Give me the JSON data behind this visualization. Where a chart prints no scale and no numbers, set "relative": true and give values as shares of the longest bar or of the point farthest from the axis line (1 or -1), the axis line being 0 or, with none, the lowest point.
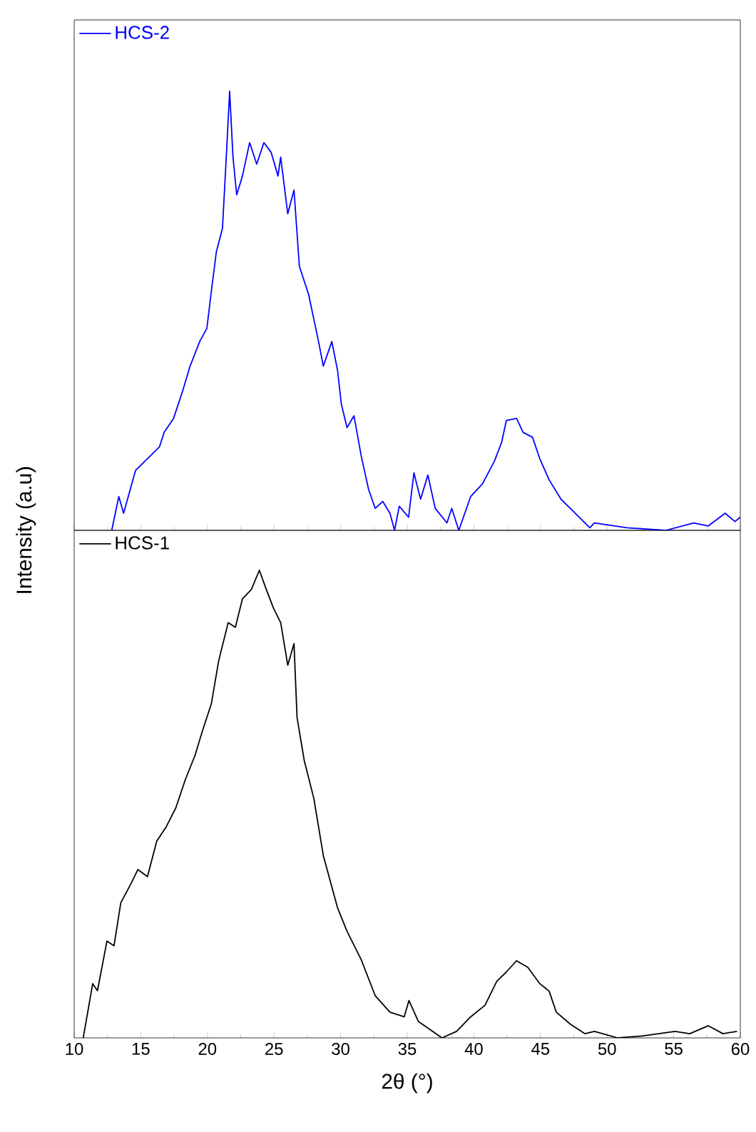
{
  "chart_data": [
    {
      "type": "line",
      "relative": true,
      "xlim": [
        10,
        60
      ],
      "xticks": [
        10,
        15,
        20,
        25,
        30,
        35,
        40,
        45,
        50,
        55,
        60
      ],
      "tick_labels": false,
      "legend": "top left",
      "marker": "none",
      "line_style": "solid",
      "series": [
        {
          "name": "HCS-2",
          "color": "#0000ff",
          "x": [
            12.82,
            13.35,
            13.71,
            14.6,
            15.5,
            16.4,
            16.75,
            17.46,
            18.17,
            18.7,
            19.42,
            19.96,
            20.31,
            20.67,
            21.13,
            21.38,
            21.67,
            21.92,
            22.2,
            22.63,
            23.17,
            23.7,
            24.24,
            24.78,
            25.3,
            25.5,
            26.03,
            26.5,
            26.9,
            27.6,
            28.34,
            28.7,
            29.34,
            29.77,
            30.05,
            30.48,
            31.0,
            31.55,
            32.1,
            32.6,
            33.16,
            33.7,
            34.05,
            34.4,
            35.1,
            35.5,
            36.0,
            36.55,
            37.1,
            37.98,
            38.34,
            38.87,
            39.76,
            40.65,
            41.55,
            42.08,
            42.44,
            43.2,
            43.7,
            44.4,
            44.95,
            45.65,
            46.54,
            47.6,
            48.7,
            49.05,
            51.5,
            54.4,
            56.5,
            57.6,
            58.86,
            59.6,
            60
          ],
          "values": [
            0,
            0.077,
            0.039,
            0.136,
            0.163,
            0.19,
            0.223,
            0.255,
            0.32,
            0.374,
            0.43,
            0.46,
            0.548,
            0.634,
            0.688,
            0.829,
            1,
            0.85,
            0.764,
            0.807,
            0.883,
            0.834,
            0.883,
            0.861,
            0.807,
            0.85,
            0.721,
            0.775,
            0.602,
            0.537,
            0.43,
            0.374,
            0.43,
            0.364,
            0.288,
            0.234,
            0.261,
            0.169,
            0.093,
            0.05,
            0.066,
            0.039,
            0,
            0.055,
            0.03,
            0.131,
            0.071,
            0.126,
            0.05,
            0.017,
            0.05,
            0,
            0.077,
            0.106,
            0.158,
            0.2,
            0.25,
            0.255,
            0.223,
            0.212,
            0.163,
            0.115,
            0.071,
            0.039,
            0.006,
            0.017,
            0.006,
            0,
            0.017,
            0.01,
            0.039,
            0.02,
            0.03
          ]
        }
      ]
    },
    {
      "type": "line",
      "relative": true,
      "xlabel": "2θ (°)",
      "ylabel": "Intensity (a.u)",
      "xlim": [
        10,
        60
      ],
      "xticks": [
        10,
        15,
        20,
        25,
        30,
        35,
        40,
        45,
        50,
        55,
        60
      ],
      "tick_labels": "x",
      "legend": "top left",
      "marker": "none",
      "line_style": "solid",
      "series": [
        {
          "name": "HCS-1",
          "color": "#000000",
          "x": [
            10.68,
            11.39,
            11.75,
            12.46,
            12.99,
            13.5,
            14.25,
            14.78,
            15.5,
            16.2,
            16.9,
            17.63,
            18.35,
            19.07,
            19.6,
            20.3,
            20.85,
            21.56,
            22.1,
            22.63,
            23.3,
            23.9,
            24.42,
            24.96,
            25.5,
            26.03,
            26.5,
            26.73,
            27.27,
            27.99,
            28.7,
            29.77,
            30.48,
            31.55,
            32.6,
            33.7,
            34.77,
            35.13,
            35.84,
            36.9,
            37.6,
            38.7,
            39.76,
            40.84,
            41.72,
            42.44,
            43.2,
            44.05,
            44.95,
            45.65,
            46.19,
            47.26,
            48.33,
            49.05,
            50.8,
            52.6,
            55.1,
            56.2,
            57.6,
            58.7,
            59.75
          ],
          "values": [
            0,
            0.116,
            0.101,
            0.207,
            0.197,
            0.289,
            0.329,
            0.36,
            0.345,
            0.421,
            0.451,
            0.492,
            0.553,
            0.604,
            0.654,
            0.715,
            0.807,
            0.888,
            0.878,
            0.939,
            0.959,
            1,
            0.959,
            0.919,
            0.888,
            0.797,
            0.843,
            0.685,
            0.593,
            0.512,
            0.39,
            0.278,
            0.228,
            0.167,
            0.09,
            0.055,
            0.045,
            0.08,
            0.035,
            0.014,
            0,
            0.014,
            0.045,
            0.07,
            0.121,
            0.141,
            0.165,
            0.151,
            0.116,
            0.1,
            0.055,
            0.029,
            0.009,
            0.014,
            0,
            0.004,
            0.014,
            0.009,
            0.026,
            0.009,
            0.014
          ]
        }
      ]
    }
  ]
}
